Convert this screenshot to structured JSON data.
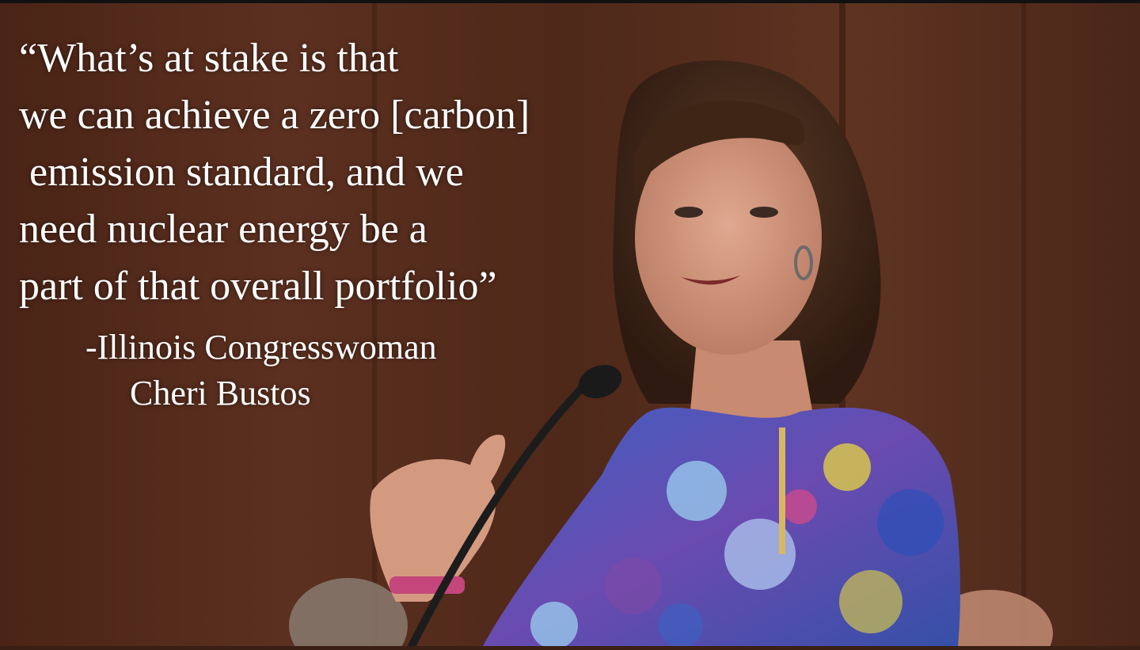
{
  "quote": {
    "lines": [
      "“What’s at stake is that",
      "we can achieve a zero [carbon]",
      " emission standard, and we",
      "need nuclear energy be a",
      "part of that overall portfolio”"
    ]
  },
  "attribution": {
    "title_line": "-Illinois Congresswoman",
    "name_line": "Cheri Bustos"
  },
  "colors": {
    "text": "#ffffff",
    "wood_paneling": "#5a3020",
    "dress_blue": "#4a6fd0",
    "dress_purple": "#7a4aa8"
  }
}
